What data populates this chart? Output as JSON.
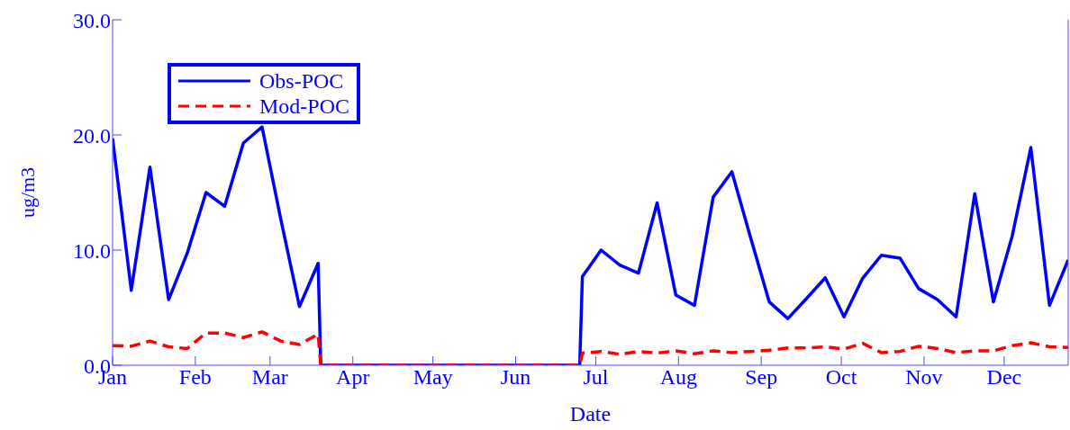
{
  "chart_data": {
    "type": "line",
    "xlabel": "Date",
    "ylabel": "ug/m3",
    "x": [
      "--01-01",
      "--01-08",
      "--01-15",
      "--01-22",
      "--01-29",
      "--02-05",
      "--02-12",
      "--02-19",
      "--02-26",
      "--03-05",
      "--03-12",
      "--03-19",
      "--03-20",
      "--06-25",
      "--06-26",
      "--07-03",
      "--07-10",
      "--07-17",
      "--07-24",
      "--07-31",
      "--08-07",
      "--08-14",
      "--08-21",
      "--08-28",
      "--09-04",
      "--09-11",
      "--09-18",
      "--09-25",
      "--10-02",
      "--10-09",
      "--10-16",
      "--10-23",
      "--10-30",
      "--11-06",
      "--11-13",
      "--11-20",
      "--11-27",
      "--12-04",
      "--12-11",
      "--12-18",
      "--12-25"
    ],
    "series": [
      {
        "name": "Obs-POC",
        "color": "#0000ff",
        "line_style": "solid",
        "values": [
          19.7,
          6.5,
          17.2,
          5.7,
          9.75,
          15.0,
          13.8,
          19.3,
          20.7,
          12.7,
          5.1,
          8.85,
          0,
          0,
          7.7,
          10.0,
          8.7,
          8.0,
          14.1,
          6.1,
          5.2,
          14.6,
          16.8,
          11.1,
          5.5,
          4.05,
          5.8,
          7.6,
          4.2,
          7.55,
          9.55,
          9.3,
          6.65,
          5.7,
          4.2,
          14.9,
          5.5,
          11.2,
          18.9,
          5.2,
          9.15
        ]
      },
      {
        "name": "Mod-POC",
        "color": "#ff0000",
        "line_style": "dashed",
        "values": [
          1.7,
          1.65,
          2.1,
          1.6,
          1.45,
          2.8,
          2.8,
          2.4,
          2.9,
          2.1,
          1.8,
          2.7,
          0,
          0,
          1.05,
          1.2,
          0.95,
          1.2,
          1.05,
          1.25,
          1.0,
          1.25,
          1.1,
          1.2,
          1.3,
          1.5,
          1.5,
          1.6,
          1.4,
          1.9,
          1.1,
          1.2,
          1.65,
          1.45,
          1.1,
          1.25,
          1.25,
          1.7,
          1.95,
          1.6,
          1.55
        ]
      }
    ],
    "xlim": [
      "--01-01",
      "--12-25"
    ],
    "xticks": [
      {
        "value": "--01-01",
        "label": "Jan"
      },
      {
        "value": "--02-01",
        "label": "Feb"
      },
      {
        "value": "--03-01",
        "label": "Mar"
      },
      {
        "value": "--04-01",
        "label": "Apr"
      },
      {
        "value": "--05-01",
        "label": "May"
      },
      {
        "value": "--06-01",
        "label": "Jun"
      },
      {
        "value": "--07-01",
        "label": "Jul"
      },
      {
        "value": "--08-01",
        "label": "Aug"
      },
      {
        "value": "--09-01",
        "label": "Sep"
      },
      {
        "value": "--10-01",
        "label": "Oct"
      },
      {
        "value": "--11-01",
        "label": "Nov"
      },
      {
        "value": "--12-01",
        "label": "Dec"
      }
    ],
    "ylim": [
      0,
      30
    ],
    "yticks": [
      {
        "value": 0,
        "label": "0.0"
      },
      {
        "value": 10,
        "label": "10.0"
      },
      {
        "value": 20,
        "label": "20.0"
      },
      {
        "value": 30,
        "label": "30.0"
      }
    ],
    "grid": false,
    "legend": "top left"
  }
}
